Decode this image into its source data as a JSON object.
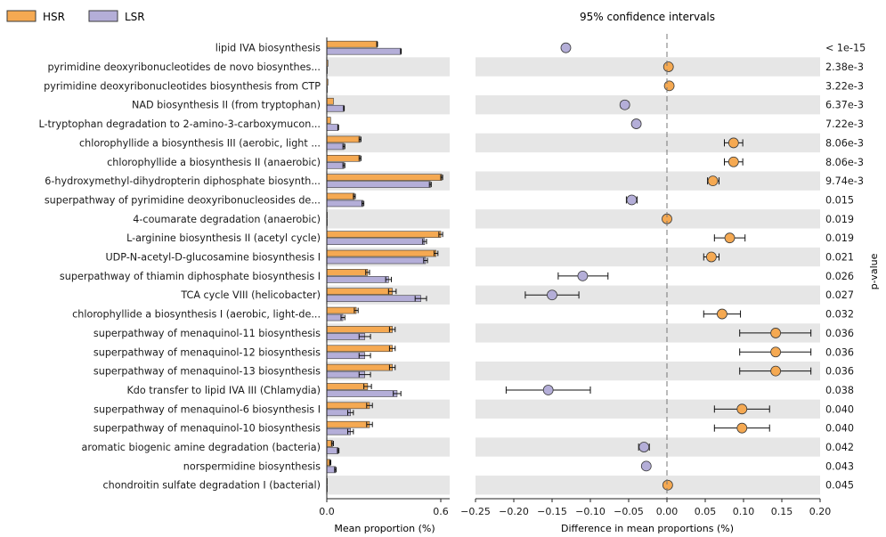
{
  "legend": {
    "items": [
      {
        "name": "HSR",
        "color": "#f5a952"
      },
      {
        "name": "LSR",
        "color": "#b4aed8"
      }
    ]
  },
  "ci_title": "95% confidence intervals",
  "pvalue_label": "p-value",
  "chart_data": [
    {
      "type": "bar",
      "orientation": "horizontal",
      "xlabel": "Mean proportion (%)",
      "xlim": [
        0.0,
        0.6
      ],
      "x_ticks": [
        "0.0",
        "0.6"
      ],
      "categories": [
        "lipid IVA biosynthesis",
        "pyrimidine deoxyribonucleotides de novo biosynthes...",
        "pyrimidine deoxyribonucleotides biosynthesis from CTP",
        "NAD biosynthesis II (from tryptophan)",
        "L-tryptophan degradation to 2-amino-3-carboxymucon...",
        "chlorophyllide a biosynthesis III (aerobic, light ...",
        "chlorophyllide a biosynthesis II (anaerobic)",
        "6-hydroxymethyl-dihydropterin diphosphate biosynth...",
        "superpathway of pyrimidine deoxyribonucleosides de...",
        "4-coumarate degradation (anaerobic)",
        "L-arginine biosynthesis II (acetyl cycle)",
        "UDP-N-acetyl-D-glucosamine biosynthesis I",
        "superpathway of thiamin diphosphate biosynthesis I",
        "TCA cycle VIII (helicobacter)",
        "chlorophyllide a biosynthesis I (aerobic, light-de...",
        "superpathway of menaquinol-11 biosynthesis",
        "superpathway of menaquinol-12 biosynthesis",
        "superpathway of menaquinol-13 biosynthesis",
        "Kdo transfer to lipid IVA III (Chlamydia)",
        "superpathway of menaquinol-6 biosynthesis I",
        "superpathway of menaquinol-10 biosynthesis",
        "aromatic biogenic amine degradation (bacteria)",
        "norspermidine biosynthesis",
        "chondroitin sulfate degradation I (bacterial)"
      ],
      "series": [
        {
          "name": "HSR",
          "values": [
            0.265,
            0.006,
            0.006,
            0.035,
            0.02,
            0.175,
            0.175,
            0.605,
            0.145,
            0.002,
            0.6,
            0.575,
            0.215,
            0.345,
            0.155,
            0.345,
            0.345,
            0.345,
            0.215,
            0.225,
            0.225,
            0.03,
            0.018,
            0.001
          ],
          "errors": [
            0.002,
            0.0,
            0.0,
            0.0,
            0.0,
            0.005,
            0.005,
            0.005,
            0.005,
            0.0,
            0.01,
            0.01,
            0.01,
            0.02,
            0.01,
            0.015,
            0.015,
            0.015,
            0.02,
            0.015,
            0.015,
            0.005,
            0.003,
            0.0
          ]
        },
        {
          "name": "LSR",
          "values": [
            0.39,
            0.003,
            0.003,
            0.09,
            0.06,
            0.09,
            0.09,
            0.545,
            0.19,
            0.0,
            0.515,
            0.52,
            0.325,
            0.495,
            0.085,
            0.2,
            0.2,
            0.2,
            0.37,
            0.125,
            0.125,
            0.06,
            0.045,
            0.0
          ],
          "errors": [
            0.002,
            0.0,
            0.0,
            0.002,
            0.002,
            0.005,
            0.005,
            0.005,
            0.005,
            0.0,
            0.01,
            0.01,
            0.015,
            0.03,
            0.01,
            0.03,
            0.03,
            0.03,
            0.02,
            0.015,
            0.015,
            0.004,
            0.004,
            0.0
          ]
        }
      ]
    },
    {
      "type": "scatter",
      "title": "95% confidence intervals",
      "xlabel": "Difference in mean proportions (%)",
      "xlim": [
        -0.25,
        0.2
      ],
      "x_ticks": [
        "−0.25",
        "−0.20",
        "−0.15",
        "−0.10",
        "−0.05",
        "0.00",
        "0.05",
        "0.10",
        "0.15",
        "0.20"
      ],
      "x_tick_values": [
        -0.25,
        -0.2,
        -0.15,
        -0.1,
        -0.05,
        0.0,
        0.05,
        0.1,
        0.15,
        0.2
      ],
      "points": [
        {
          "diff": -0.132,
          "lo": -0.132,
          "hi": -0.132,
          "group": "LSR"
        },
        {
          "diff": 0.002,
          "lo": 0.002,
          "hi": 0.002,
          "group": "HSR"
        },
        {
          "diff": 0.003,
          "lo": 0.003,
          "hi": 0.003,
          "group": "HSR"
        },
        {
          "diff": -0.055,
          "lo": -0.06,
          "hi": -0.05,
          "group": "LSR"
        },
        {
          "diff": -0.04,
          "lo": -0.04,
          "hi": -0.04,
          "group": "LSR"
        },
        {
          "diff": 0.087,
          "lo": 0.075,
          "hi": 0.099,
          "group": "HSR"
        },
        {
          "diff": 0.087,
          "lo": 0.075,
          "hi": 0.099,
          "group": "HSR"
        },
        {
          "diff": 0.06,
          "lo": 0.053,
          "hi": 0.068,
          "group": "HSR"
        },
        {
          "diff": -0.046,
          "lo": -0.053,
          "hi": -0.039,
          "group": "LSR"
        },
        {
          "diff": 0.0,
          "lo": 0.0,
          "hi": 0.0,
          "group": "HSR"
        },
        {
          "diff": 0.082,
          "lo": 0.062,
          "hi": 0.102,
          "group": "HSR"
        },
        {
          "diff": 0.058,
          "lo": 0.048,
          "hi": 0.068,
          "group": "HSR"
        },
        {
          "diff": -0.11,
          "lo": -0.142,
          "hi": -0.077,
          "group": "LSR"
        },
        {
          "diff": -0.15,
          "lo": -0.185,
          "hi": -0.115,
          "group": "LSR"
        },
        {
          "diff": 0.072,
          "lo": 0.048,
          "hi": 0.096,
          "group": "HSR"
        },
        {
          "diff": 0.142,
          "lo": 0.095,
          "hi": 0.188,
          "group": "HSR"
        },
        {
          "diff": 0.142,
          "lo": 0.095,
          "hi": 0.188,
          "group": "HSR"
        },
        {
          "diff": 0.142,
          "lo": 0.095,
          "hi": 0.188,
          "group": "HSR"
        },
        {
          "diff": -0.155,
          "lo": -0.21,
          "hi": -0.1,
          "group": "LSR"
        },
        {
          "diff": 0.098,
          "lo": 0.062,
          "hi": 0.134,
          "group": "HSR"
        },
        {
          "diff": 0.098,
          "lo": 0.062,
          "hi": 0.134,
          "group": "HSR"
        },
        {
          "diff": -0.03,
          "lo": -0.037,
          "hi": -0.023,
          "group": "LSR"
        },
        {
          "diff": -0.027,
          "lo": -0.031,
          "hi": -0.023,
          "group": "LSR"
        },
        {
          "diff": 0.001,
          "lo": 0.001,
          "hi": 0.001,
          "group": "HSR"
        }
      ],
      "pvalues": [
        "< 1e-15",
        "2.38e-3",
        "3.22e-3",
        "6.37e-3",
        "7.22e-3",
        "8.06e-3",
        "8.06e-3",
        "9.74e-3",
        "0.015",
        "0.019",
        "0.019",
        "0.021",
        "0.026",
        "0.027",
        "0.032",
        "0.036",
        "0.036",
        "0.036",
        "0.038",
        "0.040",
        "0.040",
        "0.042",
        "0.043",
        "0.045"
      ]
    }
  ],
  "style": {
    "hsr_color": "#f5a952",
    "lsr_color": "#b4aed8",
    "stripe_color": "#e6e6e6",
    "edge_color": "#3a3a3a"
  }
}
